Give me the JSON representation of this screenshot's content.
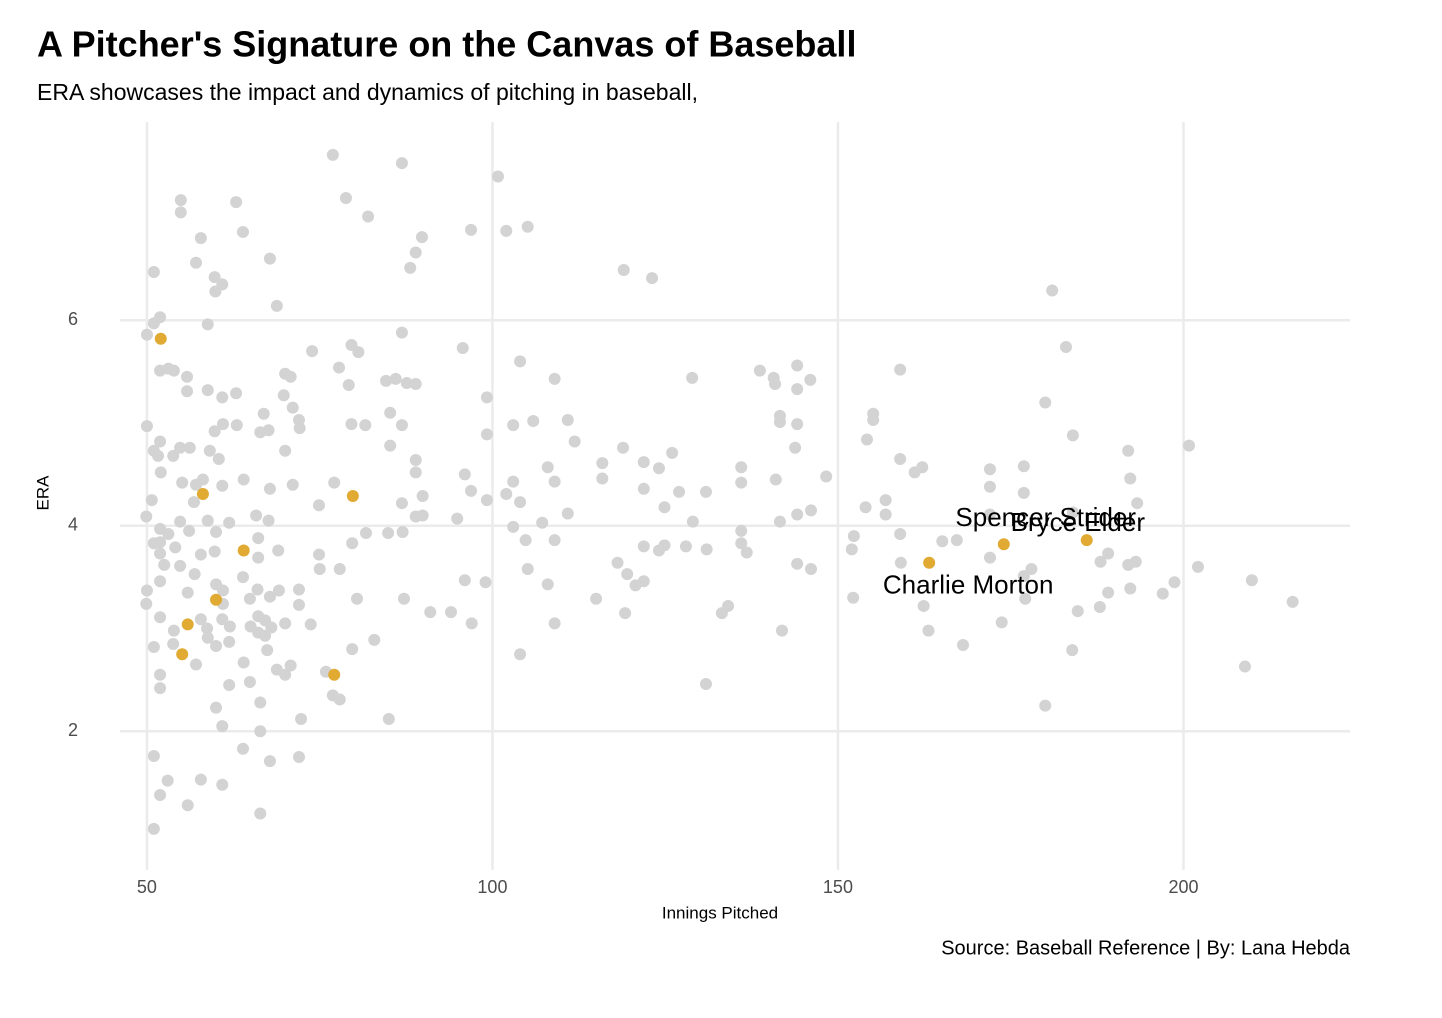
{
  "chart_data": {
    "type": "scatter",
    "title": "A Pitcher's Signature on the Canvas of Baseball",
    "subtitle": "ERA showcases the impact and dynamics of pitching in baseball,",
    "caption": "Source: Baseball Reference | By: Lana Hebda",
    "x_label": "Innings Pitched",
    "y_label": "ERA",
    "xlim": [
      46.1,
      224.1
    ],
    "ylim": [
      0.65,
      7.93
    ],
    "xticks": [
      50,
      100,
      150,
      200
    ],
    "yticks": [
      2,
      4,
      6
    ],
    "grid": true,
    "series": [
      {
        "color": "#d3d3d3",
        "x": [
          76.9,
          86.9,
          100.8,
          78.8,
          54.9,
          62.9,
          54.9,
          82.0,
          105.1,
          96.9,
          102.0,
          63.9,
          57.8,
          89.8,
          88.9,
          57.1,
          67.8,
          88.1,
          51.0,
          119.0,
          123.1,
          59.8,
          60.9,
          59.9,
          181.0,
          68.8,
          51.9,
          51.0,
          58.8,
          50.0,
          86.9,
          183.0,
          95.7,
          73.9,
          79.6,
          80.6,
          104.0,
          138.7,
          144.1,
          51.9,
          53.1,
          53.9,
          77.8,
          159.0,
          70.0,
          70.8,
          55.8,
          128.9,
          109.0,
          140.7,
          84.6,
          86.0,
          87.6,
          88.9,
          146.0,
          79.2,
          140.9,
          55.8,
          58.8,
          62.9,
          60.9,
          69.8,
          144.1,
          99.2,
          180.0,
          71.1,
          66.9,
          155.1,
          85.2,
          141.6,
          72.0,
          105.9,
          110.9,
          155.1,
          141.6,
          50.0,
          61.0,
          63.0,
          79.6,
          81.6,
          86.9,
          103.0,
          144.1,
          67.6,
          66.4,
          59.8,
          72.1,
          99.2,
          184.0,
          111.9,
          51.9,
          154.2,
          54.8,
          56.2,
          118.9,
          85.2,
          143.8,
          200.8,
          59.1,
          51.0,
          70.0,
          192.0,
          126.0,
          53.8,
          51.6,
          60.4,
          159.0,
          88.9,
          121.9,
          115.9,
          162.2,
          108.0,
          136.0,
          176.9,
          161.1,
          124.1,
          172.0,
          52.0,
          96.0,
          148.3,
          88.9,
          192.3,
          58.1,
          64.0,
          115.9,
          141.0,
          77.1,
          55.1,
          136.0,
          103.0,
          109.0,
          60.9,
          71.1,
          172.0,
          67.8,
          57.1,
          96.9,
          121.9,
          127.0,
          130.9,
          102.0,
          176.9,
          89.9,
          86.9,
          154.0,
          156.9,
          193.3,
          99.2,
          74.9,
          124.9,
          50.7,
          56.8,
          104.0,
          146.1,
          144.1,
          110.9,
          184.0,
          156.9,
          172.0,
          88.9,
          89.9,
          94.9,
          65.8,
          67.6,
          49.9,
          61.9,
          54.8,
          58.8,
          107.2,
          141.6,
          129.0,
          103.0,
          51.9,
          87.0,
          136.0,
          81.7,
          84.9,
          53.1,
          60.0,
          56.1,
          152.3,
          159.0,
          66.1,
          104.8,
          109.0,
          165.1,
          167.2,
          51.0,
          51.9,
          79.7,
          136.0,
          121.9,
          124.9,
          128.0,
          54.1,
          131.0,
          152.0,
          136.8,
          124.1,
          69.0,
          189.1,
          59.8,
          57.8,
          74.9,
          172.0,
          51.9,
          188.0,
          193.1,
          66.1,
          118.1,
          144.1,
          159.1,
          192.0,
          202.1,
          52.5,
          54.8,
          178.0,
          75.0,
          77.9,
          105.1,
          146.1,
          56.9,
          119.5,
          176.9,
          63.9,
          51.9,
          96.0,
          121.9,
          209.9,
          198.7,
          120.7,
          60.0,
          99.0,
          108.0,
          192.3,
          61.0,
          66.0,
          72.0,
          50.0,
          55.9,
          69.1,
          197.0,
          189.1,
          115.0,
          87.2,
          80.4,
          152.2,
          177.1,
          67.8,
          64.9,
          215.8,
          49.9,
          61.0,
          72.0,
          134.1,
          162.4,
          187.9,
          91.0,
          94.0,
          184.7,
          133.2,
          119.2,
          51.9,
          57.8,
          60.9,
          66.1,
          67.1,
          70.0,
          73.7,
          97.0,
          109.0,
          173.7,
          62.0,
          65.0,
          68.0,
          58.7,
          53.9,
          163.1,
          66.1,
          67.1,
          141.9,
          58.8,
          82.9,
          61.9,
          53.8,
          60.0,
          51.0,
          168.1,
          79.7,
          183.9,
          67.4,
          104.0,
          64.0,
          70.8,
          208.9,
          57.1,
          75.9,
          51.9,
          68.8,
          70.0,
          64.9,
          130.9,
          61.9,
          51.9,
          76.9,
          77.9,
          66.4,
          60.0,
          180.0,
          72.3,
          85.0,
          60.9,
          66.4,
          63.9,
          72.0,
          51.0,
          67.8,
          53.0,
          57.8,
          60.9,
          51.9,
          55.9,
          66.4,
          51.0
        ],
        "y": [
          7.61,
          7.53,
          7.4,
          7.19,
          7.17,
          7.15,
          7.05,
          7.01,
          6.91,
          6.88,
          6.87,
          6.86,
          6.8,
          6.81,
          6.66,
          6.56,
          6.6,
          6.51,
          6.47,
          6.49,
          6.41,
          6.42,
          6.35,
          6.28,
          6.29,
          6.14,
          6.03,
          5.97,
          5.96,
          5.86,
          5.88,
          5.74,
          5.73,
          5.7,
          5.76,
          5.69,
          5.6,
          5.51,
          5.56,
          5.51,
          5.53,
          5.51,
          5.54,
          5.52,
          5.48,
          5.45,
          5.45,
          5.44,
          5.43,
          5.44,
          5.41,
          5.43,
          5.39,
          5.38,
          5.42,
          5.37,
          5.38,
          5.31,
          5.32,
          5.29,
          5.25,
          5.27,
          5.33,
          5.25,
          5.2,
          5.15,
          5.09,
          5.09,
          5.1,
          5.07,
          5.03,
          5.02,
          5.03,
          5.03,
          5.01,
          4.97,
          4.99,
          4.98,
          4.99,
          4.98,
          4.98,
          4.98,
          4.99,
          4.93,
          4.91,
          4.92,
          4.95,
          4.89,
          4.88,
          4.82,
          4.82,
          4.84,
          4.76,
          4.76,
          4.76,
          4.78,
          4.76,
          4.78,
          4.73,
          4.73,
          4.73,
          4.73,
          4.71,
          4.68,
          4.68,
          4.65,
          4.65,
          4.64,
          4.62,
          4.61,
          4.57,
          4.57,
          4.57,
          4.58,
          4.52,
          4.56,
          4.55,
          4.52,
          4.5,
          4.48,
          4.52,
          4.46,
          4.45,
          4.45,
          4.46,
          4.45,
          4.42,
          4.42,
          4.42,
          4.43,
          4.43,
          4.39,
          4.4,
          4.38,
          4.36,
          4.4,
          4.34,
          4.36,
          4.33,
          4.33,
          4.31,
          4.32,
          4.29,
          4.22,
          4.18,
          4.25,
          4.22,
          4.25,
          4.2,
          4.18,
          4.25,
          4.23,
          4.23,
          4.15,
          4.11,
          4.12,
          4.13,
          4.11,
          4.11,
          4.09,
          4.1,
          4.07,
          4.1,
          4.05,
          4.09,
          4.03,
          4.04,
          4.05,
          4.03,
          4.04,
          4.04,
          3.99,
          3.97,
          3.94,
          3.95,
          3.93,
          3.93,
          3.92,
          3.94,
          3.95,
          3.9,
          3.92,
          3.88,
          3.86,
          3.86,
          3.85,
          3.86,
          3.83,
          3.84,
          3.83,
          3.83,
          3.8,
          3.81,
          3.8,
          3.79,
          3.77,
          3.77,
          3.74,
          3.76,
          3.76,
          3.73,
          3.75,
          3.72,
          3.72,
          3.69,
          3.73,
          3.65,
          3.65,
          3.69,
          3.64,
          3.63,
          3.64,
          3.62,
          3.6,
          3.62,
          3.61,
          3.58,
          3.58,
          3.58,
          3.58,
          3.58,
          3.53,
          3.53,
          3.51,
          3.5,
          3.46,
          3.47,
          3.46,
          3.47,
          3.45,
          3.42,
          3.43,
          3.45,
          3.43,
          3.39,
          3.37,
          3.38,
          3.38,
          3.37,
          3.35,
          3.37,
          3.34,
          3.35,
          3.29,
          3.29,
          3.29,
          3.3,
          3.29,
          3.31,
          3.29,
          3.26,
          3.24,
          3.24,
          3.23,
          3.22,
          3.22,
          3.21,
          3.16,
          3.16,
          3.17,
          3.15,
          3.15,
          3.11,
          3.09,
          3.09,
          3.12,
          3.08,
          3.05,
          3.04,
          3.05,
          3.05,
          3.06,
          3.02,
          3.02,
          3.01,
          3.0,
          2.98,
          2.98,
          2.96,
          2.93,
          2.98,
          2.91,
          2.89,
          2.87,
          2.85,
          2.83,
          2.82,
          2.84,
          2.8,
          2.79,
          2.79,
          2.75,
          2.67,
          2.64,
          2.63,
          2.65,
          2.58,
          2.55,
          2.6,
          2.55,
          2.48,
          2.46,
          2.45,
          2.42,
          2.35,
          2.31,
          2.28,
          2.23,
          2.25,
          2.12,
          2.12,
          2.05,
          2.0,
          1.83,
          1.75,
          1.76,
          1.71,
          1.52,
          1.53,
          1.48,
          1.38,
          1.28,
          1.2,
          1.05
        ]
      },
      {
        "color": "#e0aa33",
        "x": [
          52.0,
          58.1,
          64.0,
          60.0,
          55.9,
          55.1,
          77.1,
          79.8,
          163.2,
          174.0,
          186.0
        ],
        "y": [
          5.82,
          4.31,
          3.76,
          3.28,
          3.04,
          2.75,
          2.55,
          4.29,
          3.64,
          3.82,
          3.86
        ],
        "labels": [
          null,
          null,
          null,
          null,
          null,
          null,
          null,
          null,
          "Charlie Morton",
          "Bryce Elder",
          "Spencer Strider"
        ]
      }
    ]
  }
}
